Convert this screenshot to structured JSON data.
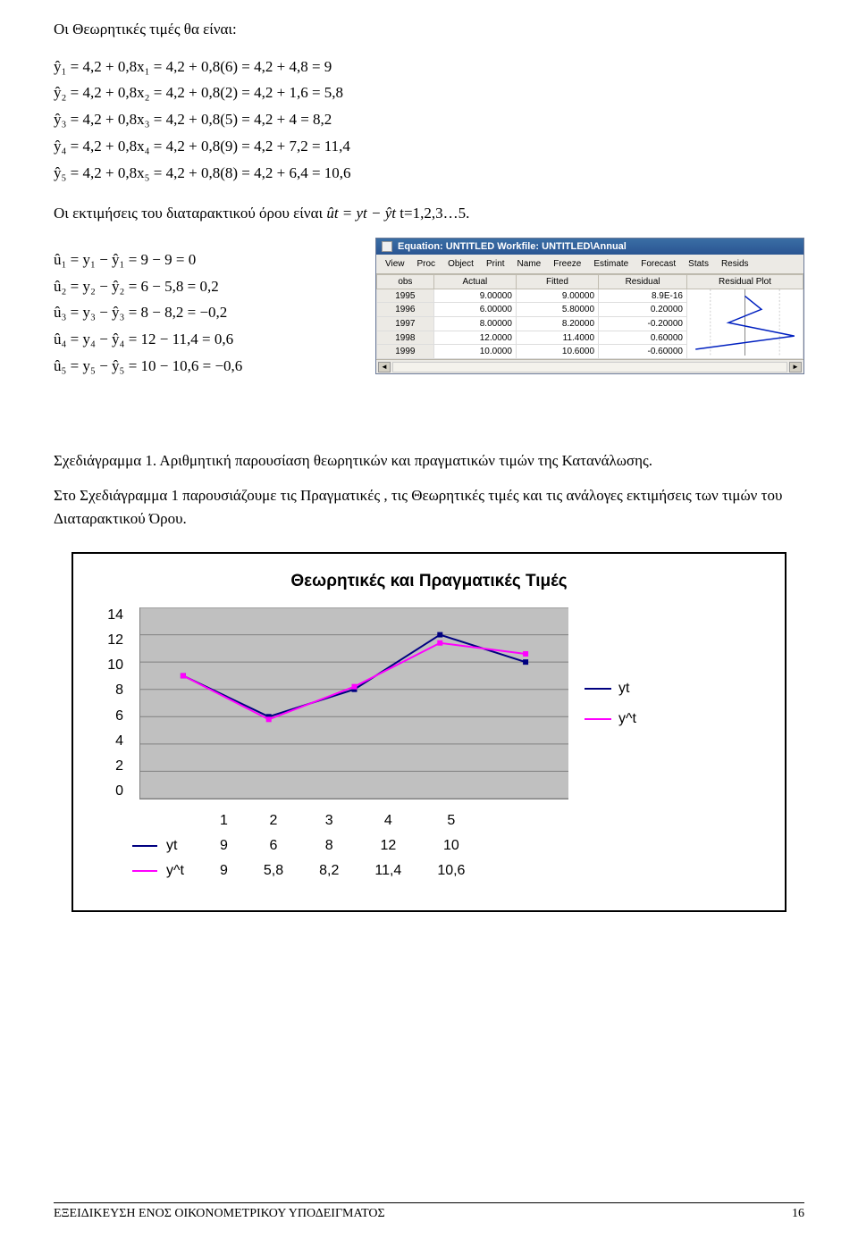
{
  "heading1": "Οι Θεωρητικές τιμές θα είναι:",
  "yhat_eqs": [
    "ŷ₁ = 4,2 + 0,8x₁ = 4,2 + 0,8(6) = 4,2 + 4,8 = 9",
    "ŷ₂ = 4,2 + 0,8x₂ = 4,2 + 0,8(2) = 4,2 + 1,6 = 5,8",
    "ŷ₃ = 4,2 + 0,8x₃ = 4,2 + 0,8(5) = 4,2 + 4 = 8,2",
    "ŷ₄ = 4,2 + 0,8x₄ = 4,2 + 0,8(9) = 4,2 + 7,2 = 11,4",
    "ŷ₅ = 4,2 + 0,8x₅ = 4,2 + 0,8(8) = 4,2 + 6,4 = 10,6"
  ],
  "disturb_text": "Οι εκτιμήσεις του διαταρακτικού όρου είναι  ",
  "disturb_eq": "ût = yt − ŷt",
  "disturb_t": "       t=1,2,3…5.",
  "uhat_eqs": [
    "û₁ = y₁ − ŷ₁ = 9 − 9 = 0",
    "û₂ = y₂ − ŷ₂ = 6 − 5,8 = 0,2",
    "û₃ = y₃ − ŷ₃ = 8 − 8,2 = −0,2",
    "û₄ = y₄ − ŷ₄ = 12 − 11,4 = 0,6",
    "û₅ = y₅ − ŷ₅ = 10 − 10,6 = −0,6"
  ],
  "caption1": "Σχεδιάγραμμα 1. Αριθμητική παρουσίαση θεωρητικών και πραγματικών τιμών της  Κατανάλωσης.",
  "caption2": "Στο Σχεδιάγραμμα 1 παρουσιάζουμε τις Πραγματικές , τις Θεωρητικές τιμές και τις ανάλογες εκτιμήσεις των τιμών  του Διαταρακτικού Όρου.",
  "eviews": {
    "title": "Equation: UNTITLED   Workfile: UNTITLED\\Annual",
    "toolbar": [
      "View",
      "Proc",
      "Object",
      "Print",
      "Name",
      "Freeze",
      "Estimate",
      "Forecast",
      "Stats",
      "Resids"
    ],
    "headers": [
      "obs",
      "Actual",
      "Fitted",
      "Residual",
      "Residual Plot"
    ],
    "rows": [
      {
        "obs": "1995",
        "actual": "9.00000",
        "fitted": "9.00000",
        "residual": "8.9E-16"
      },
      {
        "obs": "1996",
        "actual": "6.00000",
        "fitted": "5.80000",
        "residual": "0.20000"
      },
      {
        "obs": "1997",
        "actual": "8.00000",
        "fitted": "8.20000",
        "residual": "-0.20000"
      },
      {
        "obs": "1998",
        "actual": "12.0000",
        "fitted": "11.4000",
        "residual": "0.60000"
      },
      {
        "obs": "1999",
        "actual": "10.0000",
        "fitted": "10.6000",
        "residual": "-0.60000"
      }
    ],
    "residual_values": [
      0,
      0.2,
      -0.2,
      0.6,
      -0.6
    ],
    "residual_range": [
      -0.7,
      0.7
    ],
    "line_color": "#0020c0"
  },
  "chart": {
    "title": "Θεωρητικές και Πραγματικές Τιμές",
    "x_categories": [
      "1",
      "2",
      "3",
      "4",
      "5"
    ],
    "y_ticks": [
      0,
      2,
      4,
      6,
      8,
      10,
      12,
      14
    ],
    "ymin": 0,
    "ymax": 14,
    "series": [
      {
        "name": "yt",
        "color": "#000080",
        "values": [
          9,
          6,
          8,
          12,
          10
        ]
      },
      {
        "name": "y^t",
        "color": "#ff00ff",
        "values": [
          9,
          5.8,
          8.2,
          11.4,
          10.6
        ]
      }
    ],
    "table_rows": [
      {
        "label": "yt",
        "color": "#000080",
        "cells": [
          "9",
          "6",
          "8",
          "12",
          "10"
        ]
      },
      {
        "label": "y^t",
        "color": "#ff00ff",
        "cells": [
          "9",
          "5,8",
          "8,2",
          "11,4",
          "10,6"
        ]
      }
    ],
    "background": "#c0c0c0",
    "grid_color": "#808080"
  },
  "footer_text": "ΕΞΕΙΔΙΚΕΥΣΗ ΕΝΟΣ ΟΙΚΟΝΟΜΕΤΡΙΚΟΥ ΥΠΟΔΕΙΓΜΑΤΟΣ",
  "footer_page": "16"
}
